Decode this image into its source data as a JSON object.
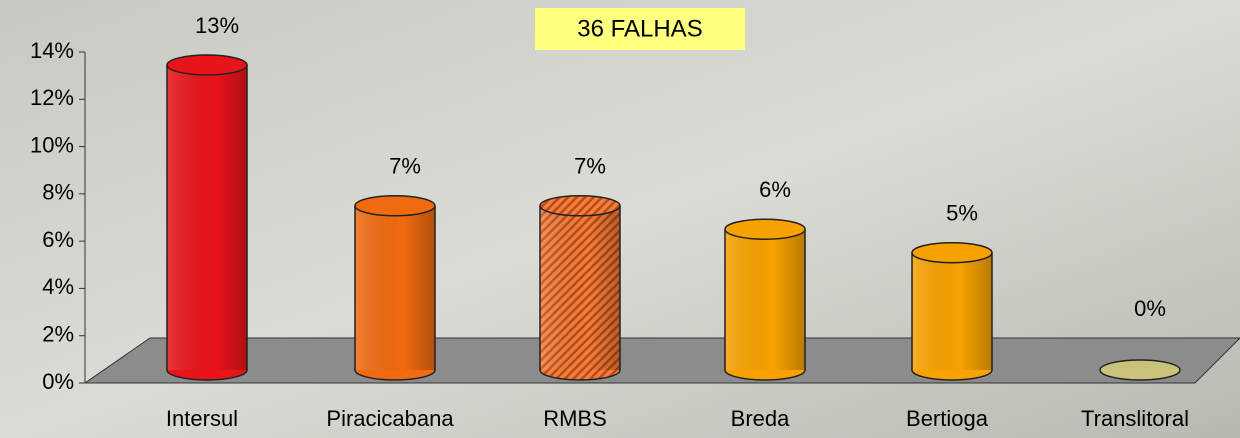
{
  "chart_data": {
    "type": "bar3d",
    "title": "36 FALHAS",
    "categories": [
      "Intersul",
      "Piracicabana",
      "RMBS",
      "Breda",
      "Bertioga",
      "Translitoral"
    ],
    "values": [
      13,
      7,
      7,
      6,
      5,
      0
    ],
    "value_labels": [
      "13%",
      "7%",
      "7%",
      "6%",
      "5%",
      "0%"
    ],
    "colors": [
      "#e8141a",
      "#f06a10",
      "url(#hatch)",
      "#f7a200",
      "#f7a200",
      "#c9c27a"
    ],
    "ylim": [
      0,
      14
    ],
    "yticks": [
      {
        "value": 0,
        "label": "0%"
      },
      {
        "value": 2,
        "label": "2%"
      },
      {
        "value": 4,
        "label": "4%"
      },
      {
        "value": 6,
        "label": "6%"
      },
      {
        "value": 8,
        "label": "8%"
      },
      {
        "value": 10,
        "label": "10%"
      },
      {
        "value": 12,
        "label": "12%"
      },
      {
        "value": 14,
        "label": "14%"
      }
    ]
  }
}
